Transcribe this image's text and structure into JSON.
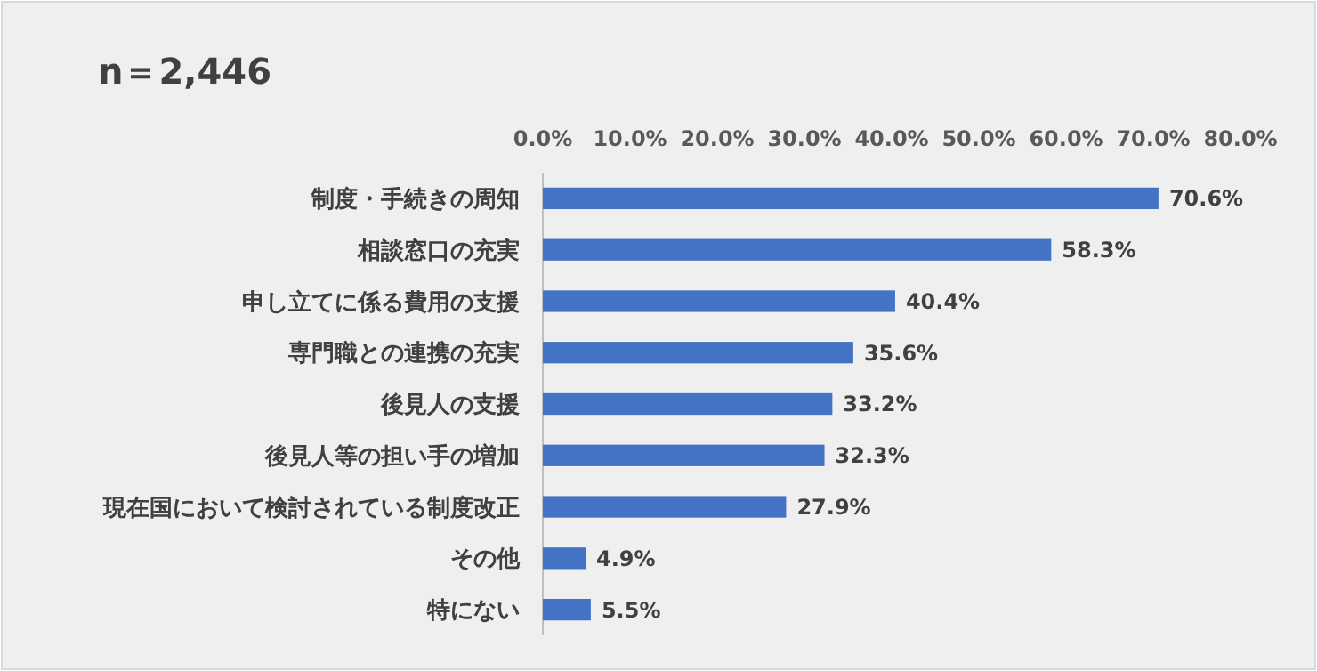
{
  "chart_data": {
    "type": "bar",
    "orientation": "horizontal",
    "title": "n＝2,446",
    "categories": [
      "制度・手続きの周知",
      "相談窓口の充実",
      "申し立てに係る費用の支援",
      "専門職との連携の充実",
      "後見人の支援",
      "後見人等の担い手の増加",
      "現在国において検討されている制度改正",
      "その他",
      "特にない"
    ],
    "values": [
      70.6,
      58.3,
      40.4,
      35.6,
      33.2,
      32.3,
      27.9,
      4.9,
      5.5
    ],
    "value_labels": [
      "70.6%",
      "58.3%",
      "40.4%",
      "35.6%",
      "33.2%",
      "32.3%",
      "27.9%",
      "4.9%",
      "5.5%"
    ],
    "color": "#4472c4",
    "xlim": [
      0,
      80
    ],
    "xticks": [
      {
        "value": 0,
        "label": "0.0%"
      },
      {
        "value": 10,
        "label": "10.0%"
      },
      {
        "value": 20,
        "label": "20.0%"
      },
      {
        "value": 30,
        "label": "30.0%"
      },
      {
        "value": 40,
        "label": "40.0%"
      },
      {
        "value": 50,
        "label": "50.0%"
      },
      {
        "value": 60,
        "label": "60.0%"
      },
      {
        "value": 70,
        "label": "70.0%"
      },
      {
        "value": 80,
        "label": "80.0%"
      }
    ],
    "grid": false
  }
}
